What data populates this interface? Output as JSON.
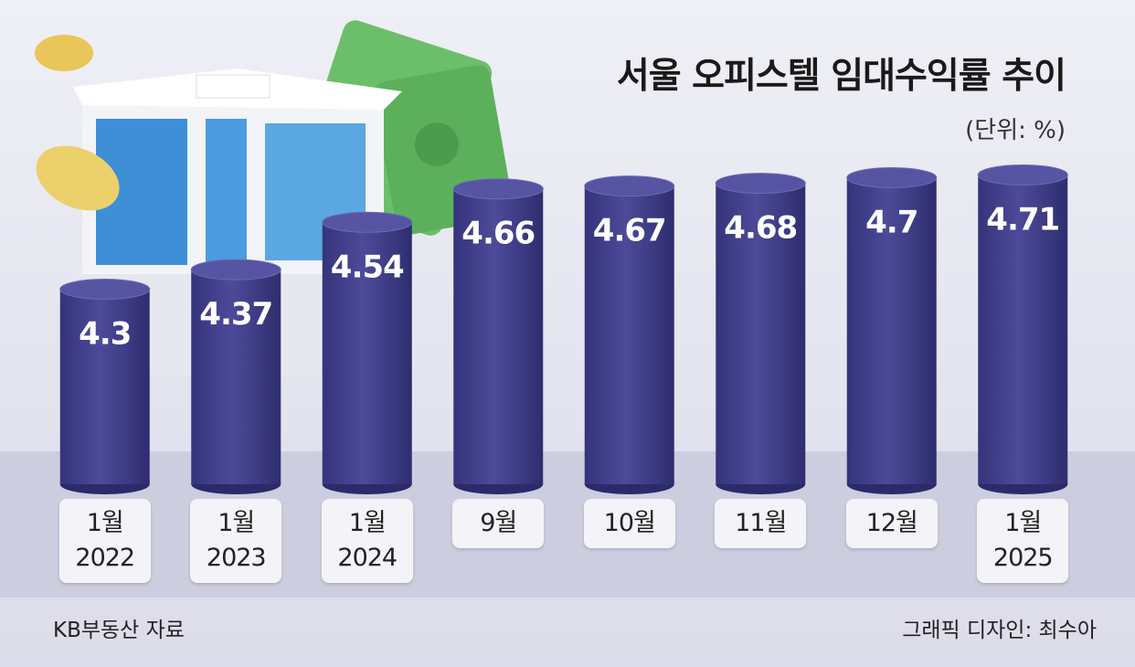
{
  "chart_data": {
    "type": "bar",
    "title": "서울 오피스텔 임대수익률 추이",
    "unit": "(단위: %)",
    "categories": [
      "1월\n2022",
      "1월\n2023",
      "1월\n2024",
      "9월",
      "10월",
      "11월",
      "12월",
      "1월\n2025"
    ],
    "values": [
      4.3,
      4.37,
      4.54,
      4.66,
      4.67,
      4.68,
      4.7,
      4.71
    ],
    "color": "#3d3b85",
    "ylim": [
      3.6,
      4.8
    ],
    "source": "KB부동산 자료",
    "credit": "그래픽 디자인: 최수아"
  }
}
